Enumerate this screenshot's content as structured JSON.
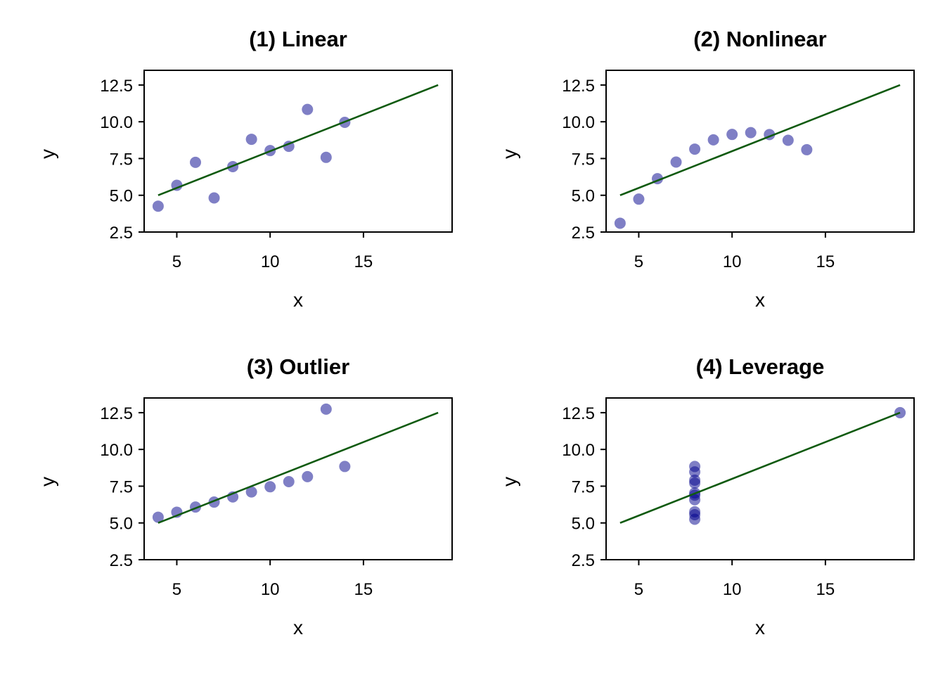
{
  "style": {
    "point_color": "#00008b",
    "point_opacity": 0.5,
    "line_color": "#0f5a0f"
  },
  "chart_data": [
    {
      "type": "scatter",
      "title": "(1) Linear",
      "xlabel": "x",
      "ylabel": "y",
      "xlim": [
        3.25,
        19.75
      ],
      "ylim": [
        2.5,
        13.5
      ],
      "xticks": [
        5,
        10,
        15
      ],
      "yticks": [
        2.5,
        5.0,
        7.5,
        10.0,
        12.5
      ],
      "points": [
        [
          10,
          8.04
        ],
        [
          8,
          6.95
        ],
        [
          13,
          7.58
        ],
        [
          9,
          8.81
        ],
        [
          11,
          8.33
        ],
        [
          14,
          9.96
        ],
        [
          6,
          7.24
        ],
        [
          4,
          4.26
        ],
        [
          12,
          10.84
        ],
        [
          7,
          4.82
        ],
        [
          5,
          5.68
        ]
      ],
      "fit_line": {
        "x": [
          4,
          19
        ],
        "y": [
          5.0,
          12.5
        ]
      }
    },
    {
      "type": "scatter",
      "title": "(2) Nonlinear",
      "xlabel": "x",
      "ylabel": "y",
      "xlim": [
        3.25,
        19.75
      ],
      "ylim": [
        2.5,
        13.5
      ],
      "xticks": [
        5,
        10,
        15
      ],
      "yticks": [
        2.5,
        5.0,
        7.5,
        10.0,
        12.5
      ],
      "points": [
        [
          10,
          9.14
        ],
        [
          8,
          8.14
        ],
        [
          13,
          8.74
        ],
        [
          9,
          8.77
        ],
        [
          11,
          9.26
        ],
        [
          14,
          8.1
        ],
        [
          6,
          6.13
        ],
        [
          4,
          3.1
        ],
        [
          12,
          9.13
        ],
        [
          7,
          7.26
        ],
        [
          5,
          4.74
        ]
      ],
      "fit_line": {
        "x": [
          4,
          19
        ],
        "y": [
          5.0,
          12.5
        ]
      }
    },
    {
      "type": "scatter",
      "title": "(3) Outlier",
      "xlabel": "x",
      "ylabel": "y",
      "xlim": [
        3.25,
        19.75
      ],
      "ylim": [
        2.5,
        13.5
      ],
      "xticks": [
        5,
        10,
        15
      ],
      "yticks": [
        2.5,
        5.0,
        7.5,
        10.0,
        12.5
      ],
      "points": [
        [
          10,
          7.46
        ],
        [
          8,
          6.77
        ],
        [
          13,
          12.74
        ],
        [
          9,
          7.11
        ],
        [
          11,
          7.81
        ],
        [
          14,
          8.84
        ],
        [
          6,
          6.08
        ],
        [
          4,
          5.39
        ],
        [
          12,
          8.15
        ],
        [
          7,
          6.42
        ],
        [
          5,
          5.73
        ]
      ],
      "fit_line": {
        "x": [
          4,
          19
        ],
        "y": [
          5.0,
          12.5
        ]
      }
    },
    {
      "type": "scatter",
      "title": "(4) Leverage",
      "xlabel": "x",
      "ylabel": "y",
      "xlim": [
        3.25,
        19.75
      ],
      "ylim": [
        2.5,
        13.5
      ],
      "xticks": [
        5,
        10,
        15
      ],
      "yticks": [
        2.5,
        5.0,
        7.5,
        10.0,
        12.5
      ],
      "points": [
        [
          8,
          6.58
        ],
        [
          8,
          5.76
        ],
        [
          8,
          7.71
        ],
        [
          8,
          8.84
        ],
        [
          8,
          8.47
        ],
        [
          8,
          7.04
        ],
        [
          8,
          5.25
        ],
        [
          19,
          12.5
        ],
        [
          8,
          5.56
        ],
        [
          8,
          7.91
        ],
        [
          8,
          6.89
        ]
      ],
      "fit_line": {
        "x": [
          4,
          19
        ],
        "y": [
          5.0,
          12.5
        ]
      }
    }
  ]
}
